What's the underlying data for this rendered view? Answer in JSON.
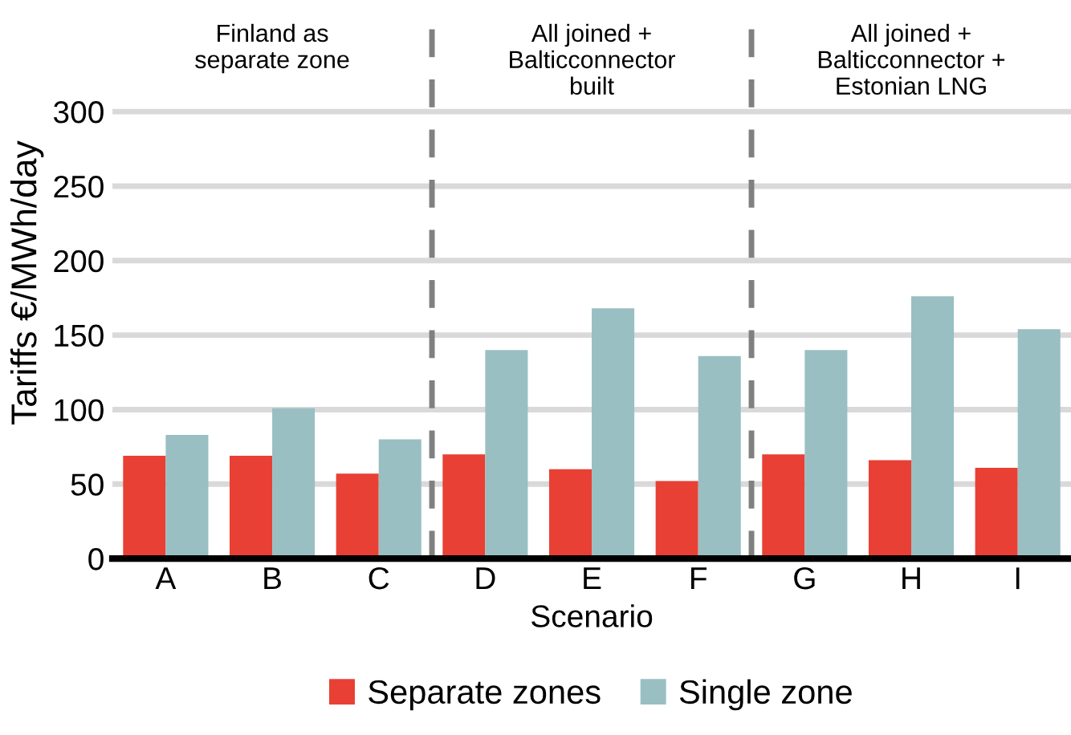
{
  "chart_data": {
    "type": "bar",
    "xlabel": "Scenario",
    "ylabel": "Tariffs €/MWh/day",
    "categories": [
      "A",
      "B",
      "C",
      "D",
      "E",
      "F",
      "G",
      "H",
      "I"
    ],
    "series": [
      {
        "name": "Separate zones",
        "color": "#e84034",
        "values": [
          69,
          69,
          57,
          70,
          60,
          52,
          70,
          66,
          61
        ]
      },
      {
        "name": "Single zone",
        "color": "#99bfc2",
        "values": [
          83,
          101,
          80,
          140,
          168,
          136,
          140,
          176,
          154
        ]
      }
    ],
    "ylim": [
      0,
      370
    ],
    "yticks": [
      0,
      50,
      100,
      150,
      200,
      250,
      300
    ],
    "grid": "y",
    "legend": "bottom",
    "annotations": [
      "Finland as\nseparate zone",
      "All joined +\nBalticconnector\nbuilt",
      "All joined +\nBalticconnector +\nEstonian LNG"
    ]
  }
}
